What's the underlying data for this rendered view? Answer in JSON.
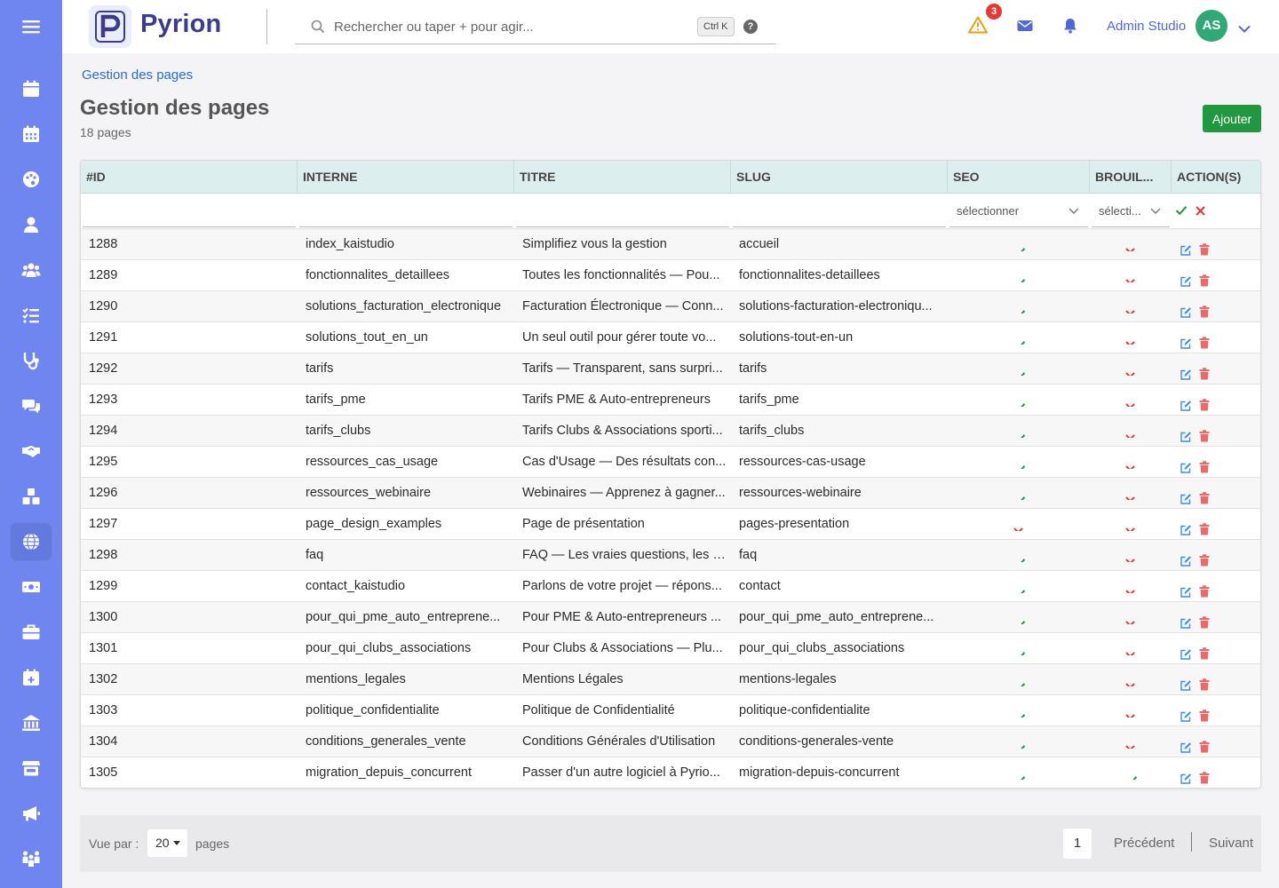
{
  "app": {
    "name": "Pyrion"
  },
  "search": {
    "placeholder": "Rechercher ou taper + pour agir...",
    "shortcut": "Ctrl K",
    "help": "?"
  },
  "header": {
    "alert_count": "3",
    "user_name": "Admin Studio",
    "user_initials": "AS"
  },
  "sidebar": {
    "items": [
      {
        "icon": "calendar-icon"
      },
      {
        "icon": "calendar-grid-icon"
      },
      {
        "icon": "palette-icon"
      },
      {
        "icon": "user-icon"
      },
      {
        "icon": "users-icon"
      },
      {
        "icon": "task-list-icon"
      },
      {
        "icon": "stethoscope-icon"
      },
      {
        "icon": "comments-icon"
      },
      {
        "icon": "handshake-icon"
      },
      {
        "icon": "boxes-icon"
      },
      {
        "icon": "globe-icon",
        "active": true
      },
      {
        "icon": "money-icon"
      },
      {
        "icon": "briefcase-icon"
      },
      {
        "icon": "calendar-plus-icon"
      },
      {
        "icon": "bank-icon"
      },
      {
        "icon": "store-icon"
      },
      {
        "icon": "megaphone-icon"
      },
      {
        "icon": "people-group-icon"
      }
    ]
  },
  "page": {
    "breadcrumb": "Gestion des pages",
    "title": "Gestion des pages",
    "count": "18 pages",
    "add_label": "Ajouter"
  },
  "table": {
    "headers": [
      "#ID",
      "INTERNE",
      "TITRE",
      "SLUG",
      "SEO",
      "BROUIL...",
      "ACTION(S)"
    ],
    "seo_filter": "sélectionner",
    "draft_filter": "sélecti...",
    "rows": [
      {
        "id": "1288",
        "interne": "index_kaistudio",
        "titre": "Simplifiez vous la gestion",
        "slug": "accueil",
        "seo": true,
        "draft": false
      },
      {
        "id": "1289",
        "interne": "fonctionnalites_detaillees",
        "titre": "Toutes les fonctionnalités — Pou...",
        "slug": "fonctionnalites-detaillees",
        "seo": true,
        "draft": false
      },
      {
        "id": "1290",
        "interne": "solutions_facturation_electronique",
        "titre": "Facturation Électronique — Conn...",
        "slug": "solutions-facturation-electroniqu...",
        "seo": true,
        "draft": false
      },
      {
        "id": "1291",
        "interne": "solutions_tout_en_un",
        "titre": "Un seul outil pour gérer toute vo...",
        "slug": "solutions-tout-en-un",
        "seo": true,
        "draft": false
      },
      {
        "id": "1292",
        "interne": "tarifs",
        "titre": "Tarifs — Transparent, sans surpri...",
        "slug": "tarifs",
        "seo": true,
        "draft": false
      },
      {
        "id": "1293",
        "interne": "tarifs_pme",
        "titre": "Tarifs PME & Auto-entrepreneurs",
        "slug": "tarifs_pme",
        "seo": true,
        "draft": false
      },
      {
        "id": "1294",
        "interne": "tarifs_clubs",
        "titre": "Tarifs Clubs & Associations sporti...",
        "slug": "tarifs_clubs",
        "seo": true,
        "draft": false
      },
      {
        "id": "1295",
        "interne": "ressources_cas_usage",
        "titre": "Cas d'Usage — Des résultats con...",
        "slug": "ressources-cas-usage",
        "seo": true,
        "draft": false
      },
      {
        "id": "1296",
        "interne": "ressources_webinaire",
        "titre": "Webinaires — Apprenez à gagner...",
        "slug": "ressources-webinaire",
        "seo": true,
        "draft": false
      },
      {
        "id": "1297",
        "interne": "page_design_examples",
        "titre": "Page de présentation",
        "slug": "pages-presentation",
        "seo": false,
        "draft": false
      },
      {
        "id": "1298",
        "interne": "faq",
        "titre": "FAQ — Les vraies questions, les v...",
        "slug": "faq",
        "seo": true,
        "draft": false
      },
      {
        "id": "1299",
        "interne": "contact_kaistudio",
        "titre": "Parlons de votre projet — répons...",
        "slug": "contact",
        "seo": true,
        "draft": false
      },
      {
        "id": "1300",
        "interne": "pour_qui_pme_auto_entreprene...",
        "titre": "Pour PME & Auto-entrepreneurs ...",
        "slug": "pour_qui_pme_auto_entreprene...",
        "seo": true,
        "draft": false
      },
      {
        "id": "1301",
        "interne": "pour_qui_clubs_associations",
        "titre": "Pour Clubs & Associations — Plu...",
        "slug": "pour_qui_clubs_associations",
        "seo": true,
        "draft": false
      },
      {
        "id": "1302",
        "interne": "mentions_legales",
        "titre": "Mentions Légales",
        "slug": "mentions-legales",
        "seo": true,
        "draft": false
      },
      {
        "id": "1303",
        "interne": "politique_confidentialite",
        "titre": "Politique de Confidentialité",
        "slug": "politique-confidentialite",
        "seo": true,
        "draft": false
      },
      {
        "id": "1304",
        "interne": "conditions_generales_vente",
        "titre": "Conditions Générales d'Utilisation",
        "slug": "conditions-generales-vente",
        "seo": true,
        "draft": false
      },
      {
        "id": "1305",
        "interne": "migration_depuis_concurrent",
        "titre": "Passer d'un autre logiciel à Pyrio...",
        "slug": "migration-depuis-concurrent",
        "seo": true,
        "draft": true
      }
    ]
  },
  "footer": {
    "per_page_label": "Vue par :",
    "per_page": "20",
    "pages_label": "pages",
    "current_page": "1",
    "prev": "Précédent",
    "next": "Suivant"
  },
  "colors": {
    "sidebar": "#6f86f0",
    "accent": "#2a6bd6",
    "success": "#21973f",
    "danger": "#e53935",
    "table_header": "#dcefee"
  }
}
